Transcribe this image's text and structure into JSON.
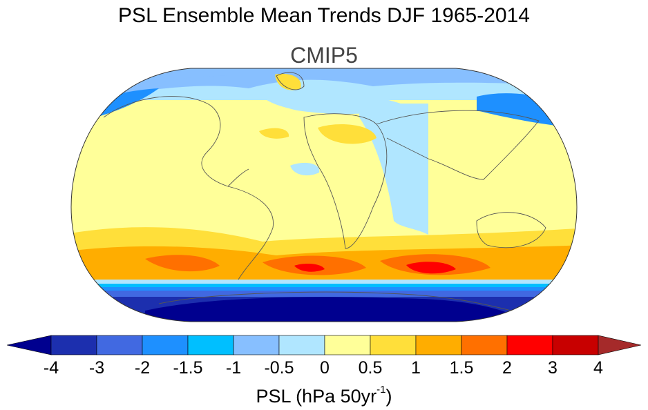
{
  "title": "PSL Ensemble Mean Trends DJF 1965-2014",
  "subtitle": "CMIP5",
  "colorbar": {
    "title_main": "PSL (hPa 50yr",
    "title_sup": "-1",
    "title_end": ")",
    "levels": [
      "-4",
      "-3",
      "-2",
      "-1.5",
      "-1",
      "-0.5",
      "0",
      "0.5",
      "1",
      "1.5",
      "2",
      "3",
      "4"
    ],
    "colors": [
      "#00008f",
      "#1c2fae",
      "#4169e1",
      "#1e90ff",
      "#00bfff",
      "#87bfff",
      "#b0e6ff",
      "#ffff99",
      "#ffdf3a",
      "#ffad00",
      "#ff7000",
      "#ff0000",
      "#c80000",
      "#a52a2a"
    ]
  },
  "map": {
    "projection": "Robinson",
    "fields": [
      {
        "region": "southern-ocean-band",
        "value": 2
      },
      {
        "region": "antarctica",
        "value": -4
      },
      {
        "region": "midlatitude-south",
        "value": 1
      },
      {
        "region": "tropics",
        "value": 0.25
      },
      {
        "region": "arctic",
        "value": -1
      }
    ]
  }
}
